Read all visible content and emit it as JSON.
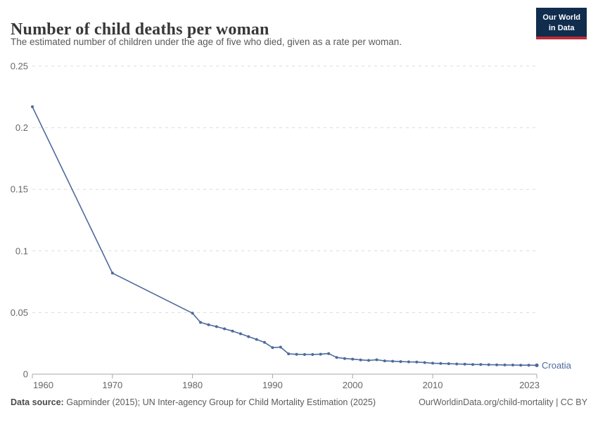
{
  "header": {
    "title": "Number of child deaths per woman",
    "subtitle": "The estimated number of children under the age of five who died, given as a rate per woman.",
    "logo": {
      "line1": "Our World",
      "line2": "in Data"
    }
  },
  "colors": {
    "line": "#4C6A9C",
    "logo_bg": "#102D4E",
    "logo_stripe": "#BE2B36",
    "gridline": "#dcdcdc",
    "axis": "#a8a8a8",
    "tick_text": "#666666"
  },
  "chart_data": {
    "type": "line",
    "title": "Number of child deaths per woman",
    "subtitle": "The estimated number of children under the age of five who died, given as a rate per woman.",
    "xlabel": "",
    "ylabel": "",
    "grid": "dashed-horizontal",
    "legend_position": "end-of-line",
    "xlim": [
      1960,
      2023
    ],
    "ylim": [
      0,
      0.25
    ],
    "xticks": [
      1960,
      1970,
      1980,
      1990,
      2000,
      2010,
      2023
    ],
    "xtick_labels": [
      "1960",
      "1970",
      "1980",
      "1990",
      "2000",
      "2010",
      "2023"
    ],
    "yticks": [
      0,
      0.05,
      0.1,
      0.15,
      0.2,
      0.25
    ],
    "ytick_labels": [
      "0",
      "0.05",
      "0.1",
      "0.15",
      "0.2",
      "0.25"
    ],
    "line_color": "#4C6A9C",
    "series": [
      {
        "name": "Croatia",
        "x": [
          1960,
          1970,
          1980,
          1981,
          1982,
          1983,
          1984,
          1985,
          1986,
          1987,
          1988,
          1989,
          1990,
          1991,
          1992,
          1993,
          1994,
          1995,
          1996,
          1997,
          1998,
          1999,
          2000,
          2001,
          2002,
          2003,
          2004,
          2005,
          2006,
          2007,
          2008,
          2009,
          2010,
          2011,
          2012,
          2013,
          2014,
          2015,
          2016,
          2017,
          2018,
          2019,
          2020,
          2021,
          2022,
          2023
        ],
        "values": [
          0.217,
          0.082,
          0.0495,
          0.042,
          0.0401,
          0.0386,
          0.0368,
          0.035,
          0.0328,
          0.0305,
          0.0282,
          0.0258,
          0.0215,
          0.022,
          0.0165,
          0.0161,
          0.016,
          0.016,
          0.0162,
          0.0167,
          0.0136,
          0.0127,
          0.0122,
          0.0116,
          0.0112,
          0.0117,
          0.0108,
          0.0105,
          0.0102,
          0.01,
          0.0098,
          0.0094,
          0.0089,
          0.0087,
          0.0085,
          0.0083,
          0.0081,
          0.0079,
          0.0078,
          0.0077,
          0.0076,
          0.0075,
          0.0074,
          0.0073,
          0.0073,
          0.0072
        ]
      }
    ]
  },
  "footer": {
    "datasource_label": "Data source:",
    "datasource_text": "Gapminder (2015); UN Inter-agency Group for Child Mortality Estimation (2025)",
    "link_text": "OurWorldinData.org/child-mortality | CC BY"
  }
}
